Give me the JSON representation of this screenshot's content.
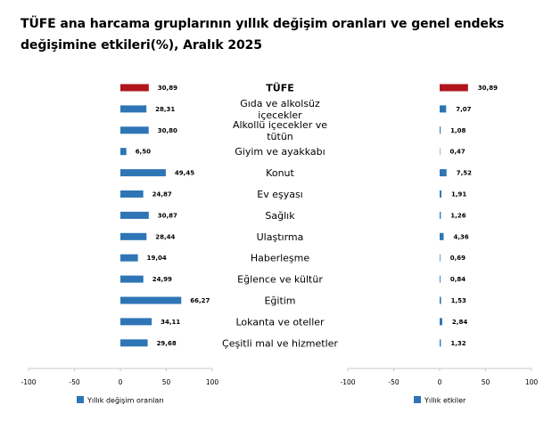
{
  "title": "TÜFE ana harcama gruplarının yıllık değişim oranları ve genel endeks değişimine etkileri(%), Aralık 2025",
  "colors": {
    "highlight": "#b0151e",
    "bar": "#2e75b6",
    "axis": "#c8c8c8"
  },
  "chart_data": [
    {
      "type": "bar",
      "orientation": "horizontal",
      "categories": [
        "TÜFE",
        "Gıda ve alkolsüz içecekler",
        "Alkollü içecekler ve tütün",
        "Giyim ve ayakkabı",
        "Konut",
        "Ev eşyası",
        "Sağlık",
        "Ulaştırma",
        "Haberleşme",
        "Eğlence ve kültür",
        "Eğitim",
        "Lokanta ve oteller",
        "Çeşitli mal ve hizmetler"
      ],
      "category_lines": [
        [
          "TÜFE"
        ],
        [
          "Gıda ve alkolsüz",
          "içecekler"
        ],
        [
          "Alkollü içecekler ve",
          "tütün"
        ],
        [
          "Giyim ve ayakkabı"
        ],
        [
          "Konut"
        ],
        [
          "Ev eşyası"
        ],
        [
          "Sağlık"
        ],
        [
          "Ulaştırma"
        ],
        [
          "Haberleşme"
        ],
        [
          "Eğlence ve kültür"
        ],
        [
          "Eğitim"
        ],
        [
          "Lokanta ve oteller"
        ],
        [
          "Çeşitli mal ve hizmetler"
        ]
      ],
      "series": [
        {
          "name": "Yıllık değişim oranları",
          "values": [
            30.89,
            28.31,
            30.8,
            6.5,
            49.45,
            24.87,
            30.87,
            28.44,
            19.04,
            24.99,
            66.27,
            34.11,
            29.68
          ]
        }
      ],
      "value_labels": [
        "30,89",
        "28,31",
        "30,80",
        "6,50",
        "49,45",
        "24,87",
        "30,87",
        "28,44",
        "19,04",
        "24,99",
        "66,27",
        "34,11",
        "29,68"
      ],
      "xlim": [
        -100,
        100
      ],
      "xticks": [
        "-100",
        "-50",
        "0",
        "50",
        "100"
      ],
      "legend": "bottom-left",
      "grid": false
    },
    {
      "type": "bar",
      "orientation": "horizontal",
      "categories": [
        "TÜFE",
        "Gıda ve alkolsüz içecekler",
        "Alkollü içecekler ve tütün",
        "Giyim ve ayakkabı",
        "Konut",
        "Ev eşyası",
        "Sağlık",
        "Ulaştırma",
        "Haberleşme",
        "Eğlence ve kültür",
        "Eğitim",
        "Lokanta ve oteller",
        "Çeşitli mal ve hizmetler"
      ],
      "series": [
        {
          "name": "Yıllık etkiler",
          "values": [
            30.89,
            7.07,
            1.08,
            0.47,
            7.52,
            1.91,
            1.26,
            4.36,
            0.69,
            0.84,
            1.53,
            2.84,
            1.32
          ]
        }
      ],
      "value_labels": [
        "30,89",
        "7,07",
        "1,08",
        "0,47",
        "7,52",
        "1,91",
        "1,26",
        "4,36",
        "0,69",
        "0,84",
        "1,53",
        "2,84",
        "1,32"
      ],
      "xlim": [
        -100,
        100
      ],
      "xticks": [
        "-100",
        "-50",
        "0",
        "50",
        "100"
      ],
      "legend": "bottom-left",
      "grid": false
    }
  ]
}
